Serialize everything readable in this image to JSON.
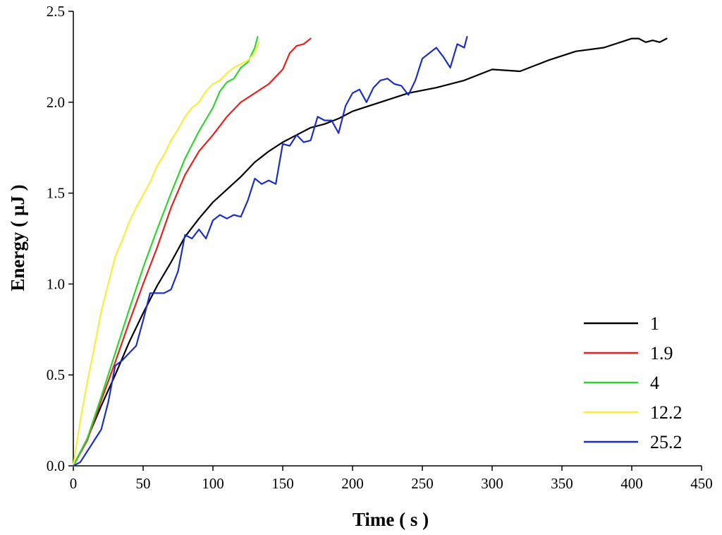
{
  "chart_data": {
    "type": "line",
    "title": "",
    "xlabel": "Time ( s )",
    "ylabel": "Energy ( µJ )",
    "xlim": [
      0,
      450
    ],
    "ylim": [
      0,
      2.5
    ],
    "xticks": [
      0,
      50,
      100,
      150,
      200,
      250,
      300,
      350,
      400,
      450
    ],
    "xtick_labels": [
      "0",
      "50",
      "100",
      "150",
      "200",
      "250",
      "300",
      "350",
      "400",
      "450"
    ],
    "yticks": [
      0,
      0.5,
      1.0,
      1.5,
      2.0,
      2.5
    ],
    "ytick_labels": [
      "0.0",
      "0.5",
      "1.0",
      "1.5",
      "2.0",
      "2.5"
    ],
    "grid": false,
    "legend_position": "bottom-right",
    "series": [
      {
        "name": "1",
        "color": "#000000",
        "x": [
          0,
          10,
          20,
          30,
          40,
          50,
          60,
          70,
          80,
          90,
          100,
          110,
          120,
          130,
          140,
          150,
          160,
          170,
          180,
          190,
          200,
          220,
          240,
          260,
          280,
          300,
          320,
          340,
          360,
          380,
          400,
          405,
          410,
          415,
          420,
          425
        ],
        "y": [
          0,
          0.15,
          0.33,
          0.5,
          0.68,
          0.84,
          0.99,
          1.12,
          1.26,
          1.36,
          1.45,
          1.52,
          1.59,
          1.67,
          1.73,
          1.78,
          1.82,
          1.86,
          1.88,
          1.91,
          1.95,
          2.0,
          2.05,
          2.08,
          2.12,
          2.18,
          2.17,
          2.23,
          2.28,
          2.3,
          2.35,
          2.35,
          2.33,
          2.34,
          2.33,
          2.35
        ]
      },
      {
        "name": "1.9",
        "color": "#e8211e",
        "x": [
          0,
          10,
          20,
          30,
          40,
          50,
          60,
          70,
          80,
          90,
          100,
          110,
          120,
          130,
          140,
          150,
          155,
          160,
          165,
          170
        ],
        "y": [
          0,
          0.14,
          0.36,
          0.57,
          0.79,
          1.0,
          1.2,
          1.42,
          1.6,
          1.73,
          1.82,
          1.92,
          2.0,
          2.05,
          2.1,
          2.18,
          2.27,
          2.31,
          2.32,
          2.35
        ]
      },
      {
        "name": "4",
        "color": "#2fd52f",
        "x": [
          0,
          10,
          20,
          30,
          40,
          50,
          60,
          70,
          80,
          90,
          100,
          105,
          110,
          115,
          120,
          125,
          130,
          132
        ],
        "y": [
          0,
          0.15,
          0.38,
          0.62,
          0.86,
          1.09,
          1.3,
          1.5,
          1.69,
          1.84,
          1.97,
          2.06,
          2.11,
          2.13,
          2.19,
          2.22,
          2.3,
          2.36
        ]
      },
      {
        "name": "12.2",
        "color": "#f5ef3a",
        "x": [
          0,
          5,
          10,
          15,
          20,
          25,
          30,
          35,
          40,
          45,
          50,
          55,
          60,
          65,
          70,
          75,
          80,
          85,
          90,
          95,
          100,
          105,
          110,
          115,
          120,
          125,
          130,
          133
        ],
        "y": [
          0,
          0.25,
          0.46,
          0.65,
          0.85,
          1.0,
          1.15,
          1.24,
          1.34,
          1.42,
          1.49,
          1.56,
          1.65,
          1.71,
          1.79,
          1.85,
          1.92,
          1.97,
          2.0,
          2.06,
          2.1,
          2.12,
          2.16,
          2.19,
          2.21,
          2.23,
          2.27,
          2.33
        ]
      },
      {
        "name": "25.2",
        "color": "#1c2fc2",
        "x": [
          0,
          5,
          10,
          15,
          20,
          25,
          30,
          35,
          40,
          45,
          50,
          55,
          60,
          65,
          70,
          75,
          80,
          85,
          90,
          95,
          100,
          105,
          110,
          115,
          120,
          125,
          130,
          135,
          140,
          145,
          150,
          155,
          160,
          165,
          170,
          175,
          180,
          185,
          190,
          195,
          200,
          205,
          210,
          215,
          220,
          225,
          230,
          235,
          240,
          245,
          250,
          255,
          260,
          265,
          270,
          275,
          280,
          282
        ],
        "y": [
          0,
          0.02,
          0.08,
          0.14,
          0.2,
          0.35,
          0.55,
          0.58,
          0.62,
          0.66,
          0.8,
          0.95,
          0.95,
          0.95,
          0.97,
          1.07,
          1.27,
          1.25,
          1.3,
          1.25,
          1.35,
          1.38,
          1.36,
          1.38,
          1.37,
          1.46,
          1.58,
          1.55,
          1.57,
          1.55,
          1.77,
          1.76,
          1.82,
          1.78,
          1.79,
          1.92,
          1.9,
          1.9,
          1.83,
          1.98,
          2.05,
          2.07,
          2.0,
          2.08,
          2.12,
          2.13,
          2.1,
          2.09,
          2.04,
          2.12,
          2.24,
          2.27,
          2.3,
          2.25,
          2.19,
          2.32,
          2.3,
          2.36
        ]
      }
    ]
  }
}
